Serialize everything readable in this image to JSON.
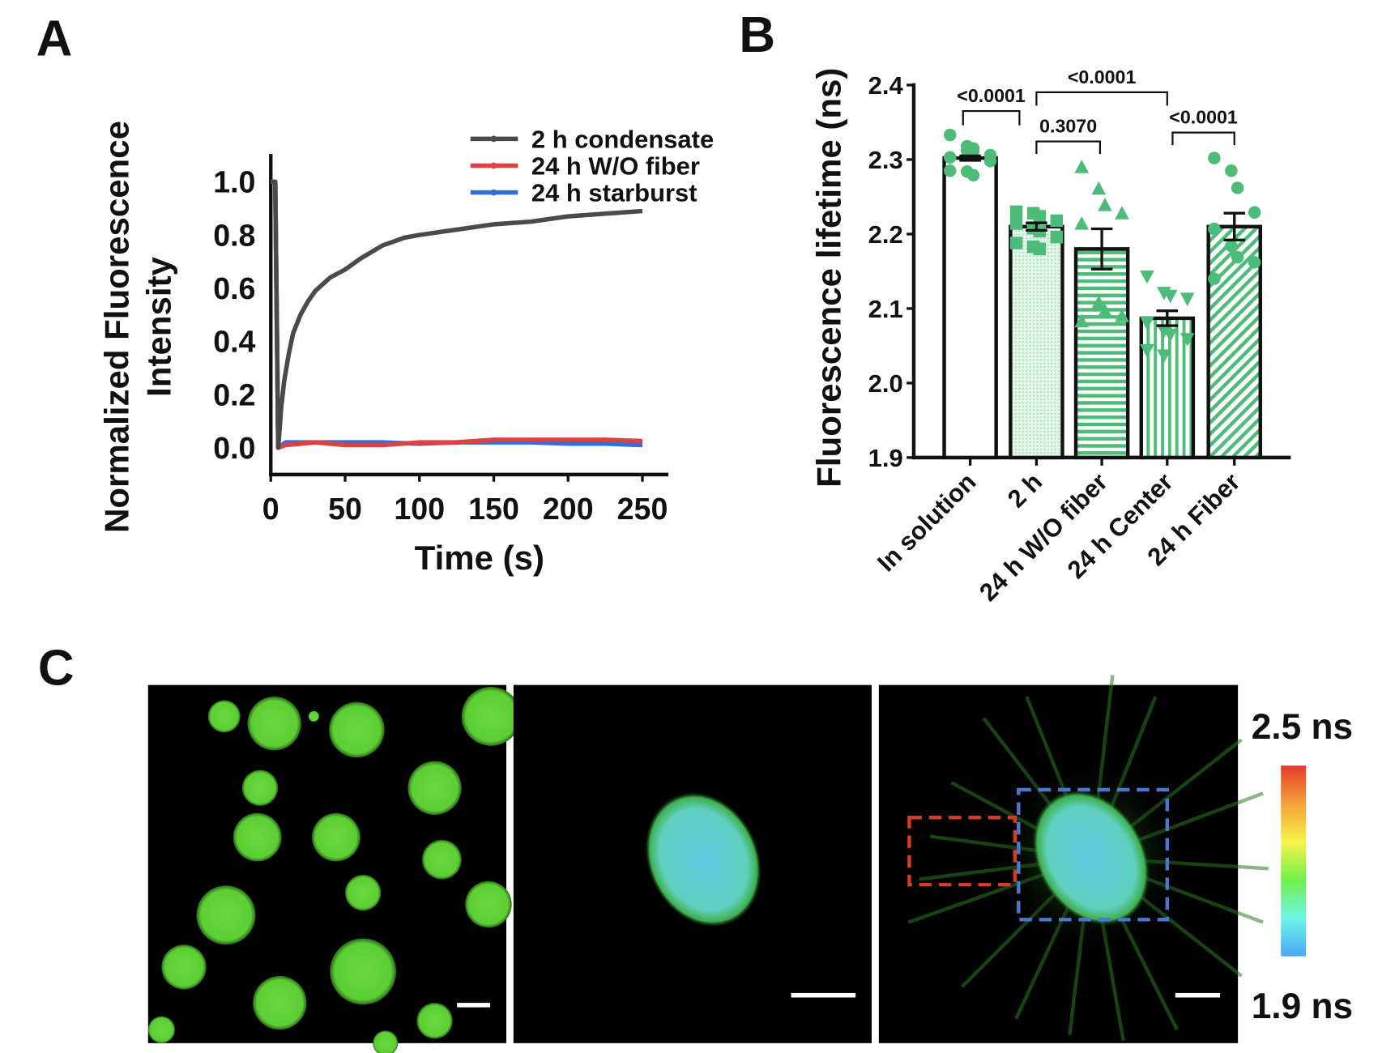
{
  "panels": {
    "a": "A",
    "b": "B",
    "c": "C"
  },
  "chart_data": [
    {
      "type": "line",
      "title": "",
      "xlabel": "Time (s)",
      "ylabel_line1": "Normalized  Fluorescence",
      "ylabel_line2": "Intensity",
      "xlim": [
        0,
        260
      ],
      "ylim": [
        -0.1,
        1.1
      ],
      "xticks": [
        "0",
        "50",
        "100",
        "150",
        "200",
        "250"
      ],
      "xtick_values": [
        0,
        50,
        100,
        150,
        200,
        250
      ],
      "yticks": [
        "0.0",
        "0.2",
        "0.4",
        "0.6",
        "0.8",
        "1.0"
      ],
      "ytick_values": [
        0,
        0.2,
        0.4,
        0.6,
        0.8,
        1.0
      ],
      "legend_position": "top-right",
      "series": [
        {
          "name": "2 h condensate",
          "color": "#4a4a4a",
          "points": [
            [
              0,
              1.0
            ],
            [
              3,
              1.0
            ],
            [
              5,
              0.0
            ],
            [
              7,
              0.15
            ],
            [
              9,
              0.25
            ],
            [
              12,
              0.35
            ],
            [
              15,
              0.43
            ],
            [
              20,
              0.5
            ],
            [
              25,
              0.55
            ],
            [
              30,
              0.59
            ],
            [
              40,
              0.64
            ],
            [
              50,
              0.67
            ],
            [
              60,
              0.71
            ],
            [
              75,
              0.76
            ],
            [
              90,
              0.79
            ],
            [
              100,
              0.8
            ],
            [
              125,
              0.82
            ],
            [
              150,
              0.84
            ],
            [
              175,
              0.85
            ],
            [
              200,
              0.87
            ],
            [
              225,
              0.88
            ],
            [
              250,
              0.89
            ]
          ]
        },
        {
          "name": "24 h W/O fiber",
          "color": "#e04040",
          "points": [
            [
              0,
              1.0
            ],
            [
              3,
              1.0
            ],
            [
              5,
              0.0
            ],
            [
              10,
              0.01
            ],
            [
              30,
              0.02
            ],
            [
              50,
              0.01
            ],
            [
              75,
              0.01
            ],
            [
              100,
              0.02
            ],
            [
              125,
              0.02
            ],
            [
              150,
              0.03
            ],
            [
              175,
              0.03
            ],
            [
              200,
              0.03
            ],
            [
              225,
              0.03
            ],
            [
              250,
              0.025
            ]
          ]
        },
        {
          "name": "24 h starburst",
          "color": "#2f6fdc",
          "points": [
            [
              0,
              1.0
            ],
            [
              3,
              1.0
            ],
            [
              5,
              0.0
            ],
            [
              10,
              0.02
            ],
            [
              30,
              0.02
            ],
            [
              50,
              0.02
            ],
            [
              75,
              0.02
            ],
            [
              100,
              0.015
            ],
            [
              125,
              0.02
            ],
            [
              150,
              0.02
            ],
            [
              175,
              0.02
            ],
            [
              200,
              0.015
            ],
            [
              225,
              0.015
            ],
            [
              250,
              0.01
            ]
          ]
        }
      ]
    },
    {
      "type": "bar",
      "ylabel": "Fluorescence  lifetime  (ns)",
      "ylim": [
        1.9,
        2.4
      ],
      "yticks": [
        "1.9",
        "2.0",
        "2.1",
        "2.2",
        "2.3",
        "2.4"
      ],
      "ytick_values": [
        1.9,
        2.0,
        2.1,
        2.2,
        2.3,
        2.4
      ],
      "categories": [
        "In solution",
        "2 h",
        "24 h W/O fiber",
        "24 h Center",
        "24 h Fiber"
      ],
      "values": [
        2.302,
        2.21,
        2.18,
        2.087,
        2.21
      ],
      "sem": [
        0.003,
        0.005,
        0.027,
        0.01,
        0.018
      ],
      "marker_color": "#4cbc78",
      "markers": [
        "circle",
        "square",
        "triangle",
        "triangle-down",
        "circle"
      ],
      "points": [
        [
          2.333,
          2.318,
          2.312,
          2.306,
          2.303,
          2.312,
          2.315,
          2.298,
          2.285,
          2.284,
          2.279
        ],
        [
          2.23,
          2.228,
          2.224,
          2.218,
          2.214,
          2.208,
          2.204,
          2.196,
          2.188,
          2.183,
          2.18
        ],
        [
          2.289,
          2.26,
          2.238,
          2.227,
          2.213,
          2.107,
          2.096,
          2.089,
          2.082
        ],
        [
          2.144,
          2.122,
          2.118,
          2.114,
          2.082,
          2.071,
          2.066,
          2.06,
          2.045,
          2.038
        ],
        [
          2.302,
          2.285,
          2.262,
          2.229,
          2.207,
          2.184,
          2.169,
          2.162,
          2.14
        ]
      ],
      "significance": [
        {
          "from": 0,
          "to": 1,
          "label": "<0.0001"
        },
        {
          "from": 1,
          "to": 3,
          "label": "<0.0001"
        },
        {
          "from": 1,
          "to": 2,
          "label": "0.3070"
        },
        {
          "from": 3,
          "to": 4,
          "label": "<0.0001"
        }
      ]
    }
  ],
  "colorbar": {
    "max_label": "2.5 ns",
    "min_label": "1.9 ns",
    "colors": [
      "#e83a2a",
      "#f4a23a",
      "#f8f44a",
      "#72f04a",
      "#6cf6e6",
      "#4aa8f4"
    ]
  }
}
